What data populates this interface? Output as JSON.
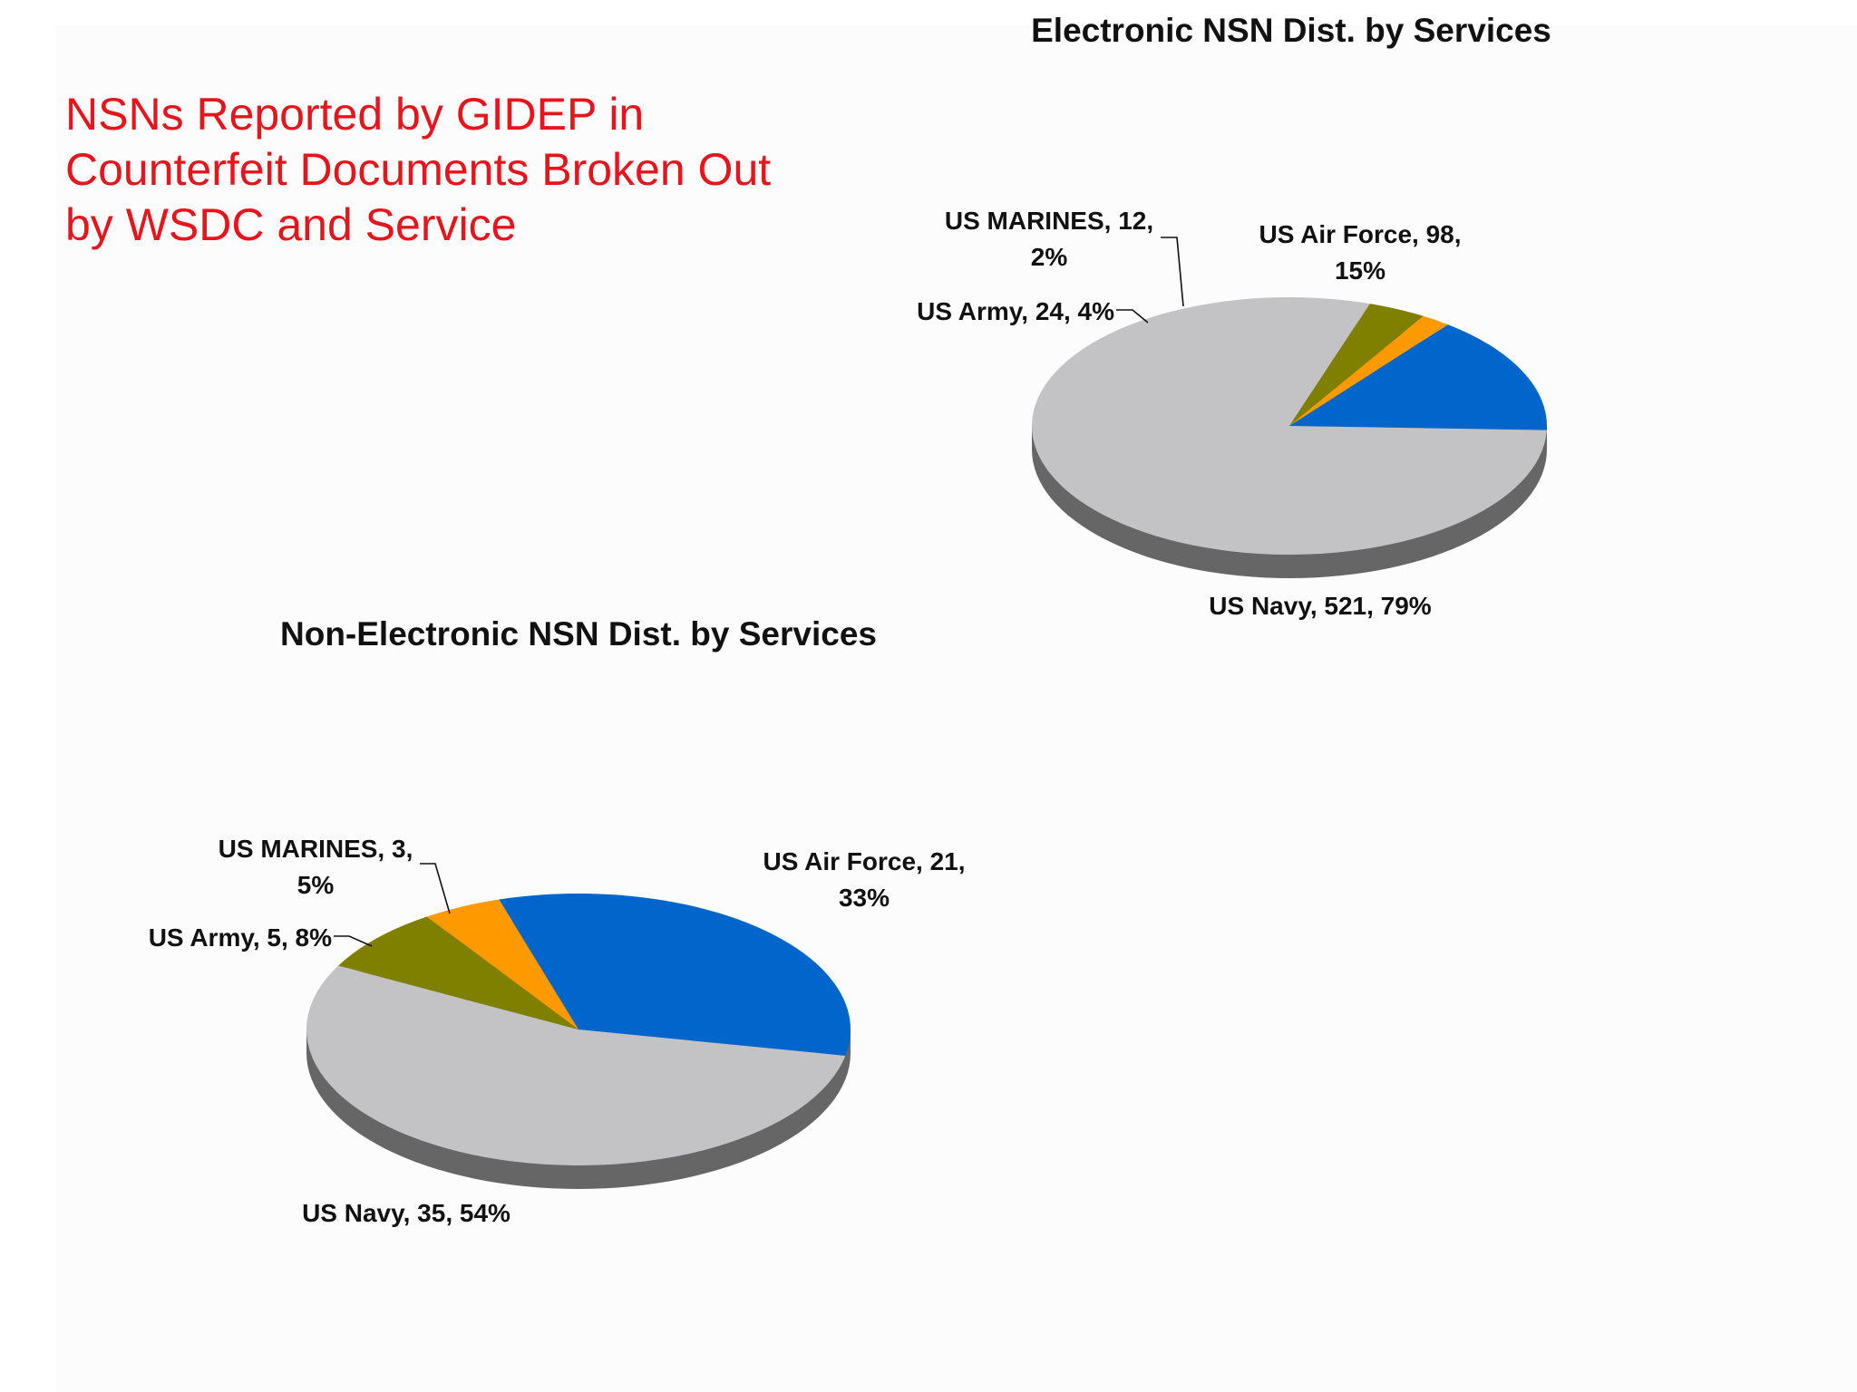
{
  "slide_title": {
    "line1": "NSNs Reported by GIDEP in",
    "line2": "Counterfeit Documents Broken Out",
    "line3": "by WSDC and Service"
  },
  "colors": {
    "title": "#e8141b",
    "us_navy": "#c3c3c5",
    "us_air_force": "#0066cc",
    "us_marines": "#ff9900",
    "us_army": "#808000",
    "pie_edge": "#666666"
  },
  "chart_data": [
    {
      "type": "pie",
      "title": "Electronic NSN Dist. by Services",
      "slices": [
        {
          "name": "US Air Force",
          "value": 98,
          "percent": 15,
          "color": "#0066cc",
          "label_lines": [
            "US Air Force, 98,",
            "15%"
          ]
        },
        {
          "name": "US Navy",
          "value": 521,
          "percent": 79,
          "color": "#c3c3c5",
          "label_lines": [
            "US Navy, 521, 79%"
          ]
        },
        {
          "name": "US Army",
          "value": 24,
          "percent": 4,
          "color": "#808000",
          "label_lines": [
            "US Army, 24, 4%"
          ]
        },
        {
          "name": "US MARINES",
          "value": 12,
          "percent": 2,
          "color": "#ff9900",
          "label_lines": [
            "US MARINES, 12,",
            "2%"
          ]
        }
      ]
    },
    {
      "type": "pie",
      "title": "Non-Electronic NSN Dist. by Services",
      "slices": [
        {
          "name": "US Air Force",
          "value": 21,
          "percent": 33,
          "color": "#0066cc",
          "label_lines": [
            "US Air Force, 21,",
            "33%"
          ]
        },
        {
          "name": "US Navy",
          "value": 35,
          "percent": 54,
          "color": "#c3c3c5",
          "label_lines": [
            "US Navy, 35, 54%"
          ]
        },
        {
          "name": "US Army",
          "value": 5,
          "percent": 8,
          "color": "#808000",
          "label_lines": [
            "US Army, 5, 8%"
          ]
        },
        {
          "name": "US MARINES",
          "value": 3,
          "percent": 5,
          "color": "#ff9900",
          "label_lines": [
            "US MARINES, 3,",
            "5%"
          ]
        }
      ]
    }
  ]
}
